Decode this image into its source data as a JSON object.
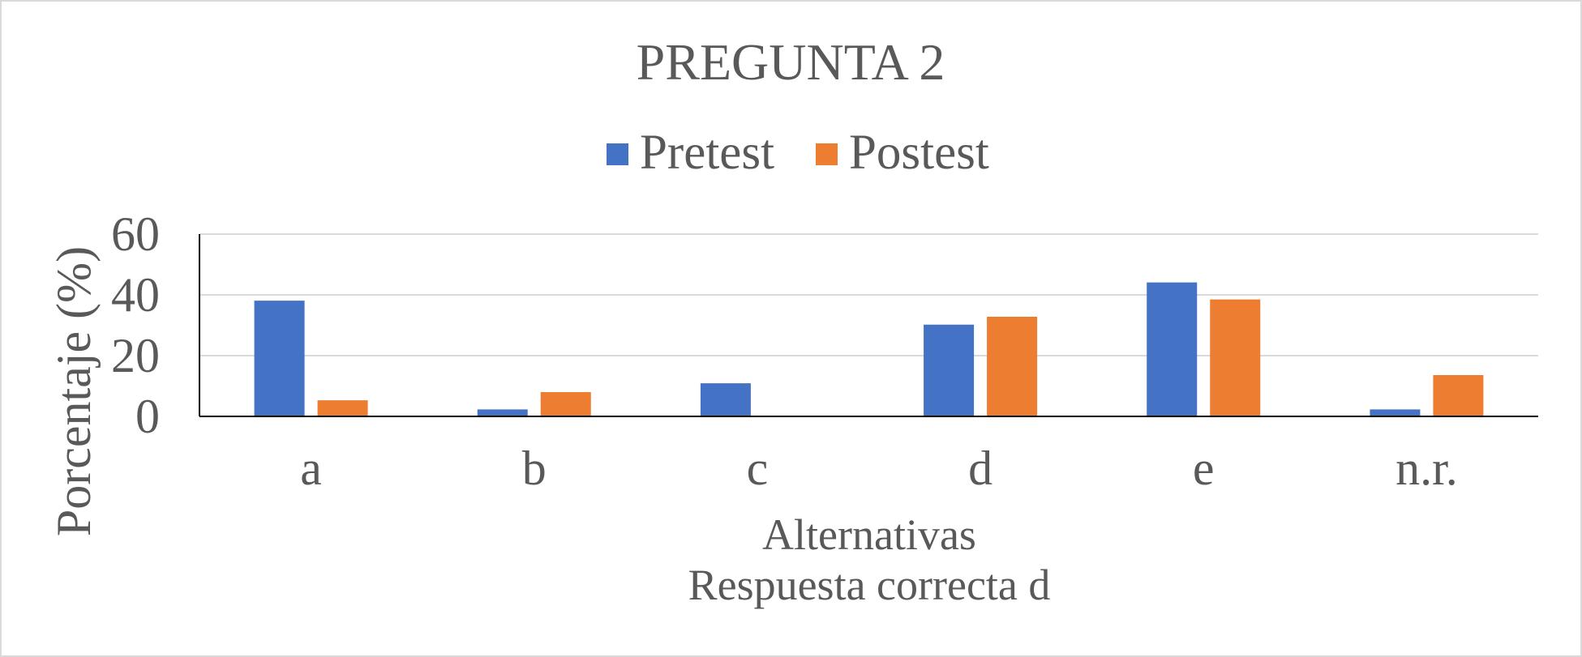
{
  "chart_data": {
    "type": "bar",
    "title": "PREGUNTA 2",
    "xlabel": "Alternativas",
    "xlabel_note": "Respuesta correcta d",
    "ylabel": "Porcentaje (%)",
    "categories": [
      "a",
      "b",
      "c",
      "d",
      "e",
      "n.r."
    ],
    "series": [
      {
        "name": "Pretest",
        "color": "#4472C4",
        "values": [
          38.1,
          2.3,
          10.9,
          30.2,
          44.1,
          2.3
        ]
      },
      {
        "name": "Postest",
        "color": "#ED7D31",
        "values": [
          5.3,
          8.0,
          0,
          32.8,
          38.5,
          13.6
        ]
      }
    ],
    "ylim": [
      0,
      60
    ],
    "yticks": [
      0,
      20,
      40,
      60
    ],
    "grid": true,
    "grid_color": "#D9D9D9",
    "axis_color": "#000000",
    "legend": "top-center"
  }
}
